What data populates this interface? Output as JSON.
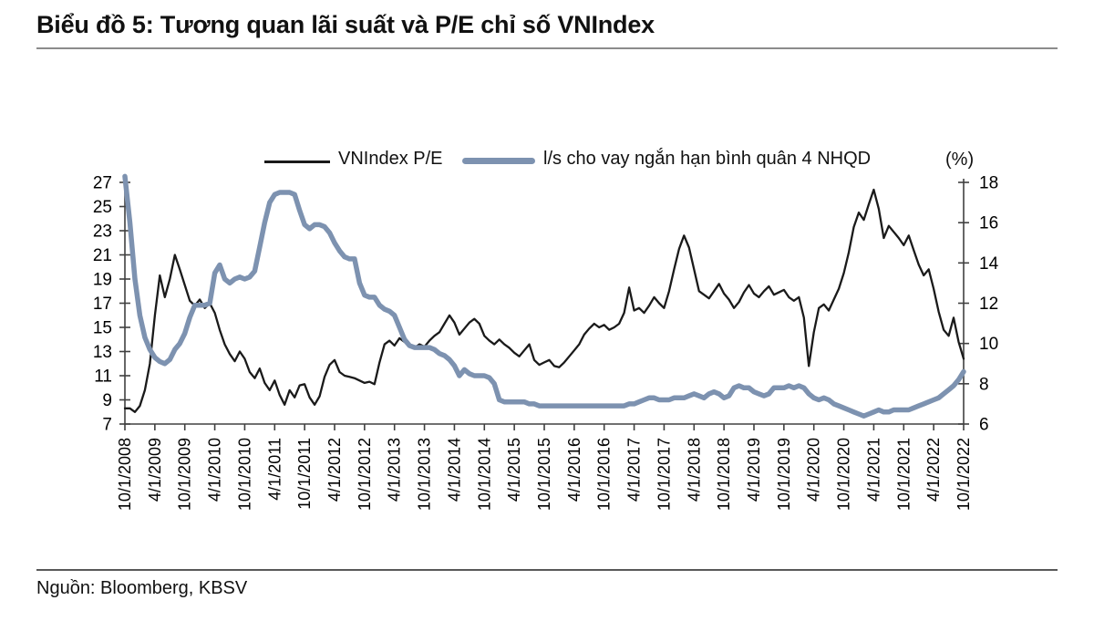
{
  "header": {
    "title": "Biểu đồ 5: Tương quan lãi suất và P/E chỉ số VNIndex"
  },
  "legend": {
    "items": [
      {
        "label": "VNIndex P/E",
        "color": "#1a1a1a",
        "style": "thin-line"
      },
      {
        "label": "l/s cho vay ngắn hạn bình quân 4 NHQD",
        "color": "#7D92B0",
        "style": "thick-line"
      }
    ]
  },
  "right_axis_unit": "(%)",
  "footer": {
    "source": "Nguồn: Bloomberg, KBSV"
  },
  "colors": {
    "pe_line": "#1a1a1a",
    "rate_line": "#7D92B0",
    "axis": "#404040",
    "title_rule": "#8c8c8c",
    "footer_rule": "#595959"
  },
  "chart_data": {
    "type": "line",
    "title": "Biểu đồ 5: Tương quan lãi suất và P/E chỉ số VNIndex",
    "grid": false,
    "legend_position": "top",
    "x_resolution": "monthly",
    "x_start": "10/2008",
    "x_end": "10/2022",
    "x_label_interval_months": 6,
    "x_labels": [
      "10/1/2008",
      "4/1/2009",
      "10/1/2009",
      "4/1/2010",
      "10/1/2010",
      "4/1/2011",
      "10/1/2011",
      "4/1/2012",
      "10/1/2012",
      "4/1/2013",
      "10/1/2013",
      "4/1/2014",
      "10/1/2014",
      "4/1/2015",
      "10/1/2015",
      "4/1/2016",
      "10/1/2016",
      "4/1/2017",
      "10/1/2017",
      "4/1/2018",
      "10/1/2018",
      "4/1/2019",
      "10/1/2019",
      "4/1/2020",
      "10/1/2020",
      "4/1/2021",
      "10/1/2021",
      "4/1/2022",
      "10/1/2022"
    ],
    "left_axis": {
      "min": 7,
      "max": 27,
      "tick_step": 2,
      "ticks": [
        7,
        9,
        11,
        13,
        15,
        17,
        19,
        21,
        23,
        25,
        27
      ]
    },
    "right_axis": {
      "min": 6,
      "max": 18,
      "tick_step": 2,
      "ticks": [
        6,
        8,
        10,
        12,
        14,
        16,
        18
      ],
      "unit": "(%)"
    },
    "series": [
      {
        "name": "VNIndex P/E",
        "axis": "left",
        "color": "#1a1a1a",
        "width": 2.3,
        "monthly_values": [
          8.3,
          8.3,
          8.0,
          8.5,
          9.8,
          12.0,
          16.0,
          19.3,
          17.5,
          19.0,
          21.0,
          19.8,
          18.5,
          17.2,
          16.8,
          17.3,
          16.6,
          17.0,
          16.2,
          14.8,
          13.6,
          12.8,
          12.2,
          13.0,
          12.4,
          11.3,
          10.8,
          11.6,
          10.4,
          9.8,
          10.6,
          9.4,
          8.6,
          9.8,
          9.2,
          10.2,
          10.3,
          9.2,
          8.6,
          9.3,
          10.9,
          11.9,
          12.3,
          11.3,
          11.0,
          10.9,
          10.8,
          10.6,
          10.4,
          10.5,
          10.3,
          12.1,
          13.6,
          13.9,
          13.5,
          14.1,
          13.8,
          13.4,
          13.3,
          13.6,
          13.4,
          13.9,
          14.3,
          14.6,
          15.3,
          16.0,
          15.4,
          14.4,
          14.9,
          15.4,
          15.7,
          15.3,
          14.3,
          13.9,
          13.6,
          14.0,
          13.6,
          13.3,
          12.9,
          12.6,
          13.1,
          13.6,
          12.3,
          11.9,
          12.1,
          12.3,
          11.8,
          11.7,
          12.1,
          12.6,
          13.1,
          13.6,
          14.4,
          14.9,
          15.3,
          15.0,
          15.2,
          14.8,
          15.0,
          15.3,
          16.2,
          18.3,
          16.4,
          16.6,
          16.2,
          16.8,
          17.5,
          17.0,
          16.6,
          18.0,
          19.8,
          21.5,
          22.6,
          21.6,
          19.8,
          18.0,
          17.7,
          17.4,
          18.0,
          18.6,
          17.8,
          17.3,
          16.6,
          17.1,
          17.9,
          18.5,
          17.8,
          17.5,
          18.0,
          18.4,
          17.7,
          17.9,
          18.1,
          17.5,
          17.2,
          17.5,
          15.8,
          11.8,
          14.6,
          16.6,
          16.9,
          16.4,
          17.3,
          18.2,
          19.5,
          21.2,
          23.3,
          24.5,
          23.9,
          25.2,
          26.4,
          24.8,
          22.4,
          23.4,
          22.9,
          22.4,
          21.8,
          22.6,
          21.4,
          20.2,
          19.3,
          19.8,
          18.2,
          16.3,
          14.8,
          14.3,
          15.8,
          13.8,
          12.4
        ]
      },
      {
        "name": "l/s cho vay ngắn hạn bình quân 4 NHQD",
        "axis": "right",
        "color": "#7D92B0",
        "width": 5.5,
        "monthly_values": [
          18.3,
          16.0,
          13.2,
          11.4,
          10.3,
          9.7,
          9.3,
          9.1,
          9.0,
          9.2,
          9.7,
          10.0,
          10.5,
          11.3,
          11.9,
          11.9,
          11.9,
          12.0,
          13.5,
          13.9,
          13.2,
          13.0,
          13.2,
          13.3,
          13.2,
          13.3,
          13.6,
          14.8,
          16.0,
          17.0,
          17.4,
          17.5,
          17.5,
          17.5,
          17.4,
          16.6,
          15.9,
          15.7,
          15.9,
          15.9,
          15.8,
          15.5,
          15.0,
          14.6,
          14.3,
          14.2,
          14.2,
          13.0,
          12.4,
          12.3,
          12.3,
          11.9,
          11.7,
          11.6,
          11.4,
          10.8,
          10.2,
          9.9,
          9.8,
          9.8,
          9.8,
          9.8,
          9.7,
          9.5,
          9.4,
          9.2,
          8.9,
          8.4,
          8.7,
          8.5,
          8.4,
          8.4,
          8.4,
          8.3,
          8.0,
          7.2,
          7.1,
          7.1,
          7.1,
          7.1,
          7.1,
          7.0,
          7.0,
          6.9,
          6.9,
          6.9,
          6.9,
          6.9,
          6.9,
          6.9,
          6.9,
          6.9,
          6.9,
          6.9,
          6.9,
          6.9,
          6.9,
          6.9,
          6.9,
          6.9,
          6.9,
          7.0,
          7.0,
          7.1,
          7.2,
          7.3,
          7.3,
          7.2,
          7.2,
          7.2,
          7.3,
          7.3,
          7.3,
          7.4,
          7.5,
          7.4,
          7.3,
          7.5,
          7.6,
          7.5,
          7.3,
          7.4,
          7.8,
          7.9,
          7.8,
          7.8,
          7.6,
          7.5,
          7.4,
          7.5,
          7.8,
          7.8,
          7.8,
          7.9,
          7.8,
          7.9,
          7.8,
          7.5,
          7.3,
          7.2,
          7.3,
          7.2,
          7.0,
          6.9,
          6.8,
          6.7,
          6.6,
          6.5,
          6.4,
          6.5,
          6.6,
          6.7,
          6.6,
          6.6,
          6.7,
          6.7,
          6.7,
          6.7,
          6.8,
          6.9,
          7.0,
          7.1,
          7.2,
          7.3,
          7.5,
          7.7,
          7.9,
          8.2,
          8.6
        ]
      }
    ]
  }
}
